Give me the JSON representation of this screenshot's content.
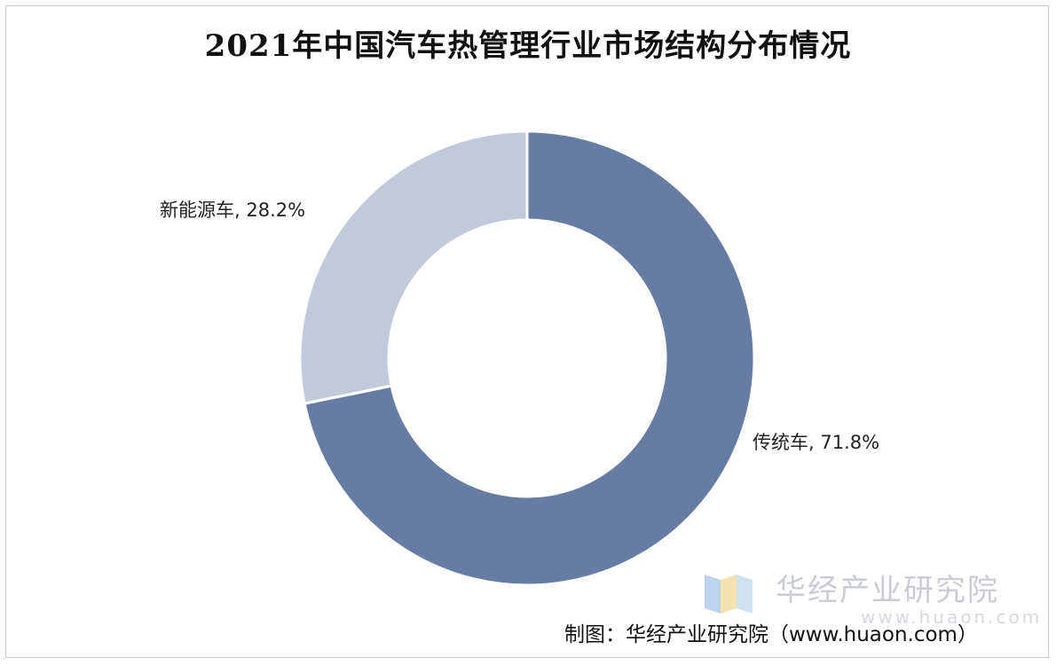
{
  "chart_data": {
    "type": "pie",
    "style": "donut",
    "title": "2021年中国汽车热管理行业市场结构分布情况",
    "slices": [
      {
        "name": "传统车",
        "value": 71.8,
        "label": "传统车, 71.8%",
        "color": "#667ca3"
      },
      {
        "name": "新能源车",
        "value": 28.2,
        "label": "新能源车, 28.2%",
        "color": "#c0cadb"
      }
    ],
    "start_angle": "12 o'clock",
    "direction": "clockwise"
  },
  "watermark": {
    "text": "华经产业研究院",
    "url": "www.huaon.com"
  },
  "source": "制图：华经产业研究院（www.huaon.com）"
}
